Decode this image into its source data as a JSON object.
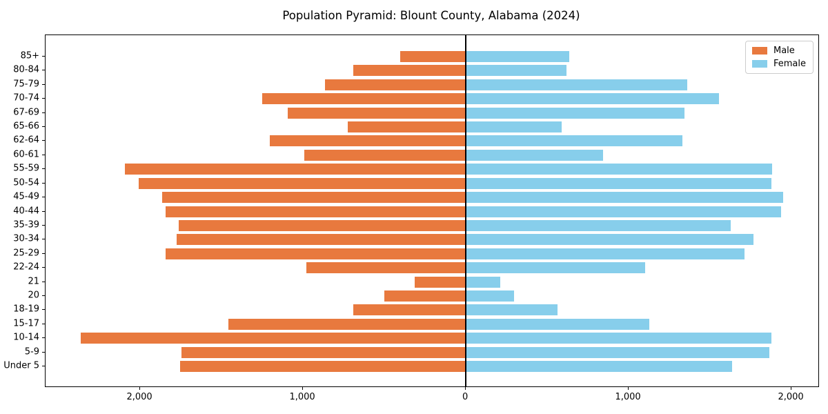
{
  "chart_data": {
    "type": "bar",
    "subtype": "population_pyramid",
    "title": "Population Pyramid: Blount County, Alabama (2024)",
    "categories": [
      "85+",
      "80-84",
      "75-79",
      "70-74",
      "67-69",
      "65-66",
      "62-64",
      "60-61",
      "55-59",
      "50-54",
      "45-49",
      "40-44",
      "35-39",
      "30-34",
      "25-29",
      "22-24",
      "21",
      "20",
      "18-19",
      "15-17",
      "10-14",
      "5-9",
      "Under 5"
    ],
    "series": [
      {
        "name": "Male",
        "side": "left",
        "color": "#e8793e",
        "values": [
          405,
          690,
          865,
          1250,
          1095,
          725,
          1205,
          990,
          2095,
          2010,
          1865,
          1845,
          1765,
          1775,
          1845,
          980,
          315,
          500,
          690,
          1460,
          2365,
          1745,
          1755
        ]
      },
      {
        "name": "Female",
        "side": "right",
        "color": "#87ceeb",
        "values": [
          635,
          620,
          1360,
          1555,
          1345,
          590,
          1330,
          845,
          1880,
          1875,
          1950,
          1935,
          1625,
          1765,
          1710,
          1100,
          210,
          295,
          565,
          1125,
          1875,
          1865,
          1635
        ]
      }
    ],
    "xlabel": "",
    "ylabel": "",
    "xlim": [
      -2581,
      2165
    ],
    "xticks": {
      "values": [
        -2000,
        -1000,
        0,
        1000,
        2000
      ],
      "labels": [
        "2,000",
        "1,000",
        "0",
        "1,000",
        "2,000"
      ]
    },
    "grid": false,
    "zero_line": true,
    "legend_position": "upper right",
    "colors": {
      "axis": "#000000",
      "legend_border": "#cccccc",
      "background": "#ffffff"
    }
  }
}
